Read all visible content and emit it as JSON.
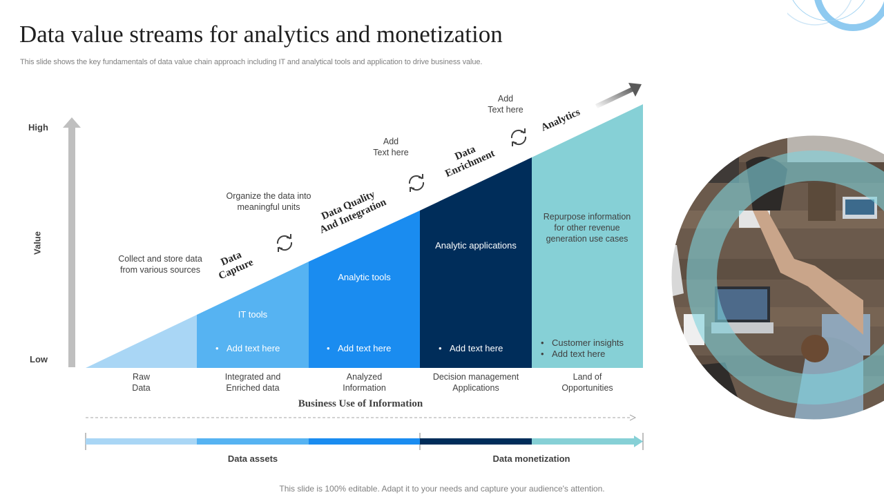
{
  "slide": {
    "title": "Data value streams for analytics and monetization",
    "subtitle": "This slide shows the key fundamentals of data value chain approach including IT and analytical tools and application to drive business value.",
    "footer": "This slide is 100% editable. Adapt it to your needs and capture your audience's attention."
  },
  "axis": {
    "high": "High",
    "low": "Low",
    "value": "Value"
  },
  "stages": {
    "data_capture": "Data\nCapture",
    "data_quality": "Data Quality\nAnd Integration",
    "data_enrichment": "Data\nEnrichment",
    "analytics": "Analytics"
  },
  "notes": {
    "collect": "Collect and store data from various  sources",
    "organize": "Organize the data into meaningful units",
    "add1": "Add\nText here",
    "add2": "Add\nText here"
  },
  "columns": {
    "it_tools": "IT tools",
    "analytic_tools": "Analytic tools",
    "analytic_applications": "Analytic applications",
    "repurpose": "Repurpose information for other revenue generation use cases",
    "bullet_it": "Add text here",
    "bullet_tools": "Add text here",
    "bullet_apps": "Add text here",
    "bullet_insights": "Customer insights",
    "bullet_repurpose": "Add text here"
  },
  "categories": {
    "raw": "Raw\nData",
    "integrated": "Integrated and\nEnriched data",
    "analyzed": "Analyzed\nInformation",
    "decision": "Decision management\nApplications",
    "land": "Land of\nOpportunities"
  },
  "business_use": "Business Use of Information",
  "bottom": {
    "assets": "Data assets",
    "monetization": "Data monetization"
  },
  "icons": {
    "cycle": "refresh-cycle-icon",
    "value_arrow": "up-arrow-icon",
    "growth_arrow": "diagonal-arrow-icon",
    "photo": "teamwork-handshake-photo"
  },
  "colors": {
    "light_blue": "#a9d6f5",
    "mid_blue": "#56b3f2",
    "bright_blue": "#1a8cf0",
    "navy": "#002d5a",
    "teal": "#86d0d6",
    "accent_ring": "#7fc4ea"
  }
}
